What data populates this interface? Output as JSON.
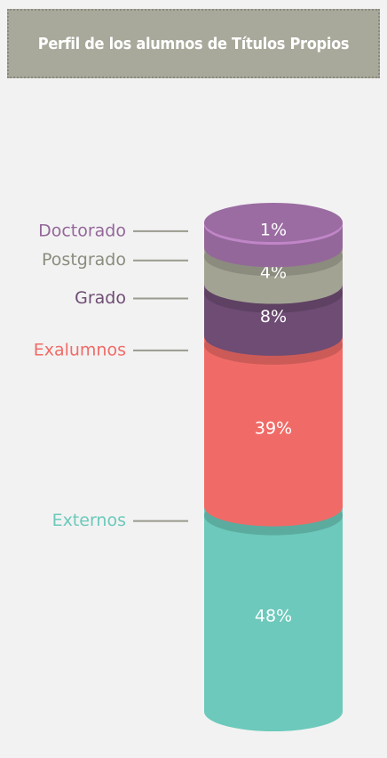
{
  "chart_data": {
    "type": "stacked_cylinder",
    "title": "Perfil de los alumnos de Títulos Propios",
    "series": [
      {
        "name": "Doctorado",
        "color": "#94679a",
        "values": [
          1
        ],
        "value_labels": [
          "1%"
        ]
      },
      {
        "name": "Postgrado",
        "color": "#a3a394",
        "values": [
          4
        ],
        "value_labels": [
          "4%"
        ]
      },
      {
        "name": "Grado",
        "color": "#6e4c74",
        "values": [
          8
        ],
        "value_labels": [
          "8%"
        ]
      },
      {
        "name": "Exalumnos",
        "color": "#f06b67",
        "values": [
          39
        ],
        "value_labels": [
          "39%"
        ]
      },
      {
        "name": "Externos",
        "color": "#6cc9bb",
        "values": [
          48
        ],
        "value_labels": [
          "48%"
        ]
      }
    ]
  }
}
